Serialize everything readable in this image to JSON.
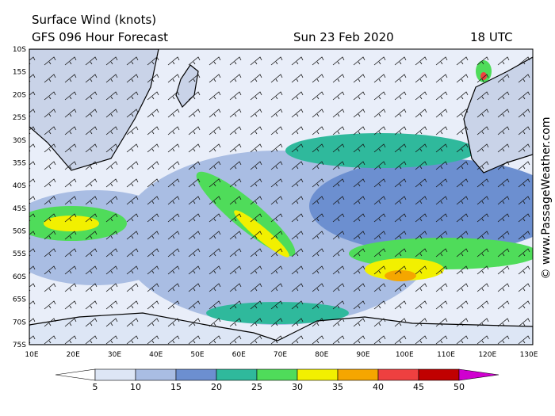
{
  "header": {
    "title": "Surface Wind (knots)",
    "subtitle": "GFS 096 Hour Forecast",
    "date": "Sun 23 Feb 2020",
    "time": "18 UTC"
  },
  "map": {
    "latitudes": [
      "10S",
      "15S",
      "20S",
      "25S",
      "30S",
      "35S",
      "40S",
      "45S",
      "50S",
      "55S",
      "60S",
      "65S",
      "70S",
      "75S"
    ],
    "longitudes": [
      "10E",
      "20E",
      "30E",
      "40E",
      "50E",
      "60E",
      "70E",
      "80E",
      "90E",
      "100E",
      "110E",
      "120E",
      "130E"
    ]
  },
  "colorbar": {
    "ticks": [
      5,
      10,
      15,
      20,
      25,
      30,
      35,
      40,
      45,
      50
    ],
    "colors": [
      "#ffffff",
      "#dde6f5",
      "#a9bde3",
      "#6c8fd0",
      "#2fb99c",
      "#4fdc5a",
      "#f2f000",
      "#f5a600",
      "#ee4040",
      "#c00000",
      "#d000d0"
    ]
  },
  "copyright": "© www.PassageWeather.com"
}
